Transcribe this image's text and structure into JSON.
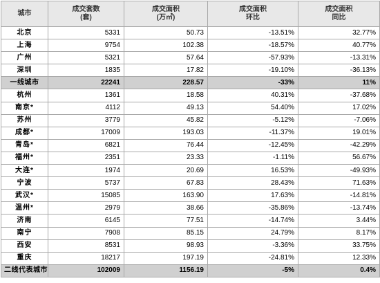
{
  "table": {
    "headers": [
      {
        "line1": "城市",
        "line2": ""
      },
      {
        "line1": "成交套数",
        "line2": "(套)"
      },
      {
        "line1": "成交面积",
        "line2": "(万㎡)"
      },
      {
        "line1": "成交面积",
        "line2": "环比"
      },
      {
        "line1": "成交面积",
        "line2": "同比"
      }
    ],
    "rows": [
      {
        "city": "北京",
        "units": "5331",
        "area": "50.73",
        "mom": "-13.51%",
        "yoy": "32.77%",
        "summary": false
      },
      {
        "city": "上海",
        "units": "9754",
        "area": "102.38",
        "mom": "-18.57%",
        "yoy": "40.77%",
        "summary": false
      },
      {
        "city": "广州",
        "units": "5321",
        "area": "57.64",
        "mom": "-57.93%",
        "yoy": "-13.31%",
        "summary": false
      },
      {
        "city": "深圳",
        "units": "1835",
        "area": "17.82",
        "mom": "-19.10%",
        "yoy": "-36.13%",
        "summary": false
      },
      {
        "city": "一线城市",
        "units": "22241",
        "area": "228.57",
        "mom": "-33%",
        "yoy": "11%",
        "summary": true
      },
      {
        "city": "杭州",
        "units": "1361",
        "area": "18.58",
        "mom": "40.31%",
        "yoy": "-37.68%",
        "summary": false
      },
      {
        "city": "南京*",
        "units": "4112",
        "area": "49.13",
        "mom": "54.40%",
        "yoy": "17.02%",
        "summary": false
      },
      {
        "city": "苏州",
        "units": "3779",
        "area": "45.82",
        "mom": "-5.12%",
        "yoy": "-7.06%",
        "summary": false
      },
      {
        "city": "成都*",
        "units": "17009",
        "area": "193.03",
        "mom": "-11.37%",
        "yoy": "19.01%",
        "summary": false
      },
      {
        "city": "青岛*",
        "units": "6821",
        "area": "76.44",
        "mom": "-12.45%",
        "yoy": "-42.29%",
        "summary": false
      },
      {
        "city": "福州*",
        "units": "2351",
        "area": "23.33",
        "mom": "-1.11%",
        "yoy": "56.67%",
        "summary": false
      },
      {
        "city": "大连*",
        "units": "1974",
        "area": "20.69",
        "mom": "16.53%",
        "yoy": "-49.93%",
        "summary": false
      },
      {
        "city": "宁波",
        "units": "5737",
        "area": "67.83",
        "mom": "28.43%",
        "yoy": "71.63%",
        "summary": false
      },
      {
        "city": "武汉*",
        "units": "15085",
        "area": "163.90",
        "mom": "17.63%",
        "yoy": "-14.81%",
        "summary": false
      },
      {
        "city": "温州*",
        "units": "2979",
        "area": "38.66",
        "mom": "-35.86%",
        "yoy": "-13.74%",
        "summary": false
      },
      {
        "city": "济南",
        "units": "6145",
        "area": "77.51",
        "mom": "-14.74%",
        "yoy": "3.44%",
        "summary": false
      },
      {
        "city": "南宁",
        "units": "7908",
        "area": "85.15",
        "mom": "24.79%",
        "yoy": "8.17%",
        "summary": false
      },
      {
        "city": "西安",
        "units": "8531",
        "area": "98.93",
        "mom": "-3.36%",
        "yoy": "33.75%",
        "summary": false
      },
      {
        "city": "重庆",
        "units": "18217",
        "area": "197.19",
        "mom": "-24.81%",
        "yoy": "12.33%",
        "summary": false
      },
      {
        "city": "二线代表城市",
        "units": "102009",
        "area": "1156.19",
        "mom": "-5%",
        "yoy": "0.4%",
        "summary": true
      }
    ]
  }
}
